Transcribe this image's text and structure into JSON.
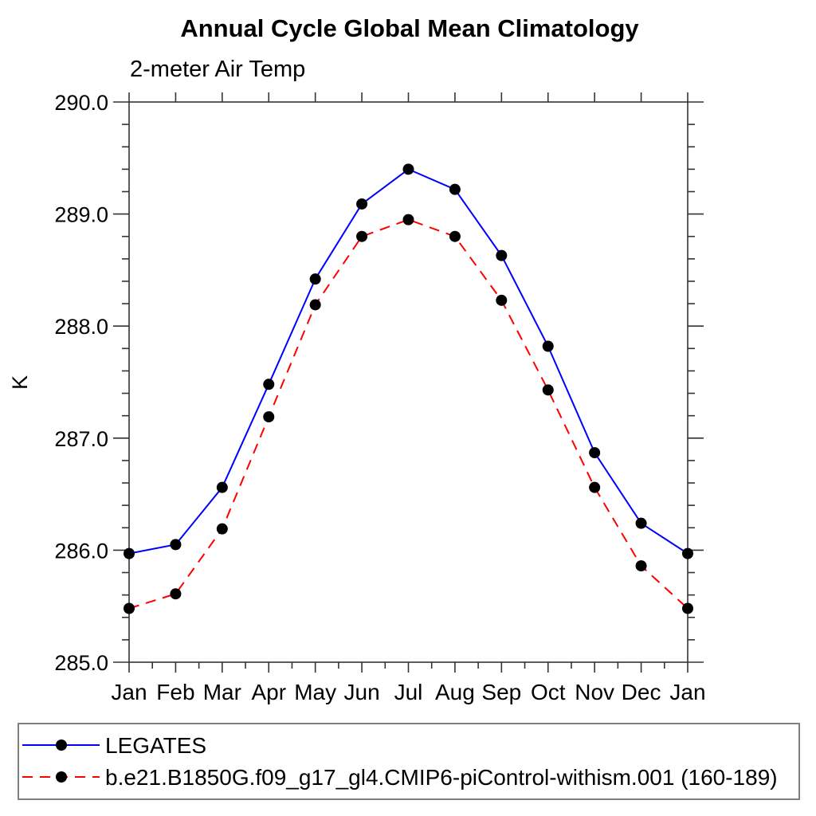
{
  "chart_data": {
    "type": "line",
    "title": "Annual Cycle Global Mean Climatology",
    "subtitle": "2-meter Air Temp",
    "xlabel": "",
    "ylabel": "K",
    "categories": [
      "Jan",
      "Feb",
      "Mar",
      "Apr",
      "May",
      "Jun",
      "Jul",
      "Aug",
      "Sep",
      "Oct",
      "Nov",
      "Dec",
      "Jan"
    ],
    "series": [
      {
        "name": "LEGATES",
        "color": "#0000ff",
        "line_style": "solid",
        "marker": "filled-circle",
        "marker_color": "#000000",
        "values": [
          285.97,
          286.05,
          286.56,
          287.48,
          288.42,
          289.09,
          289.4,
          289.22,
          288.63,
          287.82,
          286.87,
          286.24,
          285.97
        ]
      },
      {
        "name": "b.e21.B1850G.f09_g17_gl4.CMIP6-piControl-withism.001 (160-189)",
        "color": "#ff0000",
        "line_style": "dashed",
        "marker": "filled-circle",
        "marker_color": "#000000",
        "values": [
          285.48,
          285.61,
          286.19,
          287.19,
          288.19,
          288.8,
          288.95,
          288.8,
          288.23,
          287.43,
          286.56,
          285.86,
          285.48
        ]
      }
    ],
    "ylim": [
      285.0,
      290.0
    ],
    "y_major_step": 1.0,
    "y_minor_step": 0.2,
    "y_tick_labels": [
      "285.0",
      "286.0",
      "287.0",
      "288.0",
      "289.0",
      "290.0"
    ],
    "x_minor_ticks": "half-month",
    "grid": false,
    "legend_position": "bottom-box"
  }
}
